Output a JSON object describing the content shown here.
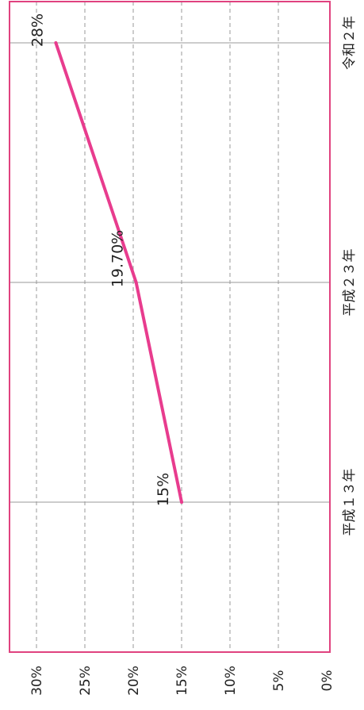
{
  "chart_data": {
    "type": "line",
    "orientation": "rotated-90-clockwise",
    "categories": [
      "平成１３年",
      "平成２３年",
      "令和２年"
    ],
    "series": [
      {
        "values": [
          15,
          19.7,
          28
        ],
        "data_labels": [
          "15%",
          "19.70%",
          "28%"
        ]
      }
    ],
    "y_ticks": [
      "0%",
      "5%",
      "10%",
      "15%",
      "20%",
      "25%",
      "30%"
    ],
    "ylim": [
      0,
      30
    ],
    "title": "",
    "xlabel": "",
    "ylabel": "",
    "grid": {
      "value_axis": "dashed",
      "category_axis": "solid"
    },
    "legend": "none",
    "colors": {
      "line": "#E83C8E",
      "frame": "#E0427F",
      "grid": "#999999"
    }
  }
}
